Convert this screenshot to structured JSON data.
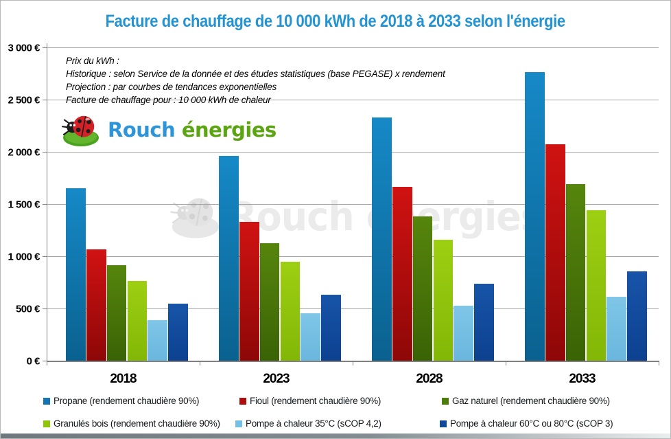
{
  "watermark": {
    "text": "Rouch énergies"
  },
  "logo": {
    "word1": "Rouch",
    "word2": "énergies",
    "blue": "#2e96d8",
    "green": "#5ca512"
  },
  "annotation": {
    "lines": [
      "Prix du kWh :",
      "Historique : selon Service de la donnée et des études statistiques (base PEGASE) x rendement",
      "Projection : par courbes de tendances exponentielles",
      "Facture de chauffage pour : 10 000 kWh de chaleur"
    ]
  },
  "chart_data": {
    "type": "bar",
    "title": "Facture de chauffage de 10 000 kWh de 2018 à 2033 selon l'énergie",
    "title_color": "#2493d1",
    "categories": [
      "2018",
      "2023",
      "2028",
      "2033"
    ],
    "series": [
      {
        "name": "Propane (rendement chaudière 90%)",
        "color": "#1474b4",
        "color_top": "#1689c7",
        "color_bottom": "#0a618f",
        "values": [
          1650,
          1960,
          2330,
          2765
        ]
      },
      {
        "name": "Fioul  (rendement chaudière 90%)",
        "color": "#b00d0d",
        "color_top": "#d01212",
        "color_bottom": "#8e0707",
        "values": [
          1065,
          1330,
          1665,
          2075
        ]
      },
      {
        "name": "Gaz naturel (rendement chaudière 90%)",
        "color": "#4c7c0a",
        "color_top": "#56850d",
        "color_bottom": "#3a6305",
        "values": [
          915,
          1125,
          1380,
          1690
        ]
      },
      {
        "name": "Granulés bois (rendement chaudière 90%)",
        "color": "#8fc608",
        "color_top": "#9dcf12",
        "color_bottom": "#82b706",
        "values": [
          765,
          950,
          1160,
          1440
        ]
      },
      {
        "name": "Pompe à chaleur 35°C (sCOP 4,2)",
        "color": "#74bfe4",
        "color_top": "#7fc6e8",
        "color_bottom": "#6ab6dd",
        "values": [
          390,
          455,
          525,
          615
        ]
      },
      {
        "name": "Pompe à chaleur 60°C ou 80°C (sCOP 3)",
        "color": "#11499b",
        "color_top": "#1754a8",
        "color_bottom": "#0d4190",
        "values": [
          545,
          630,
          735,
          855
        ]
      }
    ],
    "ylim": [
      0,
      3000
    ],
    "ytick_step": 500,
    "ytick_labels": [
      "0 €",
      "500 €",
      "1 000 €",
      "1 500 €",
      "2 000 €",
      "2 500 €",
      "3 000 €"
    ],
    "grid": true,
    "legend_position": "bottom"
  }
}
